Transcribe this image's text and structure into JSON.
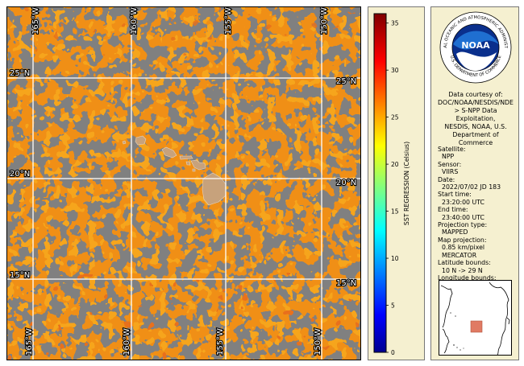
{
  "map": {
    "lat_labels": [
      "25°N",
      "20°N",
      "15°N"
    ],
    "lon_labels": [
      "165°W",
      "160°W",
      "155°W",
      "150°W"
    ],
    "colors": {
      "background": "#808080",
      "land": "#c7a27c",
      "grid": "#ffffff"
    }
  },
  "colorbar": {
    "label": "SST REGRESSION (Celsius)",
    "min": 0,
    "max": 36,
    "ticks": [
      "0",
      "5",
      "10",
      "15",
      "20",
      "25",
      "30",
      "35"
    ]
  },
  "info": {
    "logo": {
      "text": "NOAA",
      "ring_top": "NATIONAL OCEANIC AND ATMOSPHERIC ADMINISTRATION",
      "ring_bottom": "U.S. DEPARTMENT OF COMMERCE"
    },
    "credit": [
      "Data courtesy of:",
      "DOC/NOAA/NESDIS/NDE",
      "> S-NPP Data",
      "Exploitation,",
      "NESDIS, NOAA, U.S.",
      "Department of",
      "Commerce"
    ],
    "fields": [
      {
        "key": "Satellite:",
        "value": "NPP"
      },
      {
        "key": "Sensor:",
        "value": "VIIRS"
      },
      {
        "key": "Date:",
        "value": "2022/07/02 JD 183"
      },
      {
        "key": "Start time:",
        "value": "23:20:00 UTC"
      },
      {
        "key": "End time:",
        "value": "23:40:00 UTC"
      },
      {
        "key": "Projection type:",
        "value": "MAPPED"
      },
      {
        "key": "Map projection:",
        "value": "0.85 km/pixel"
      },
      {
        "key": "",
        "value": "MERCATOR"
      },
      {
        "key": "Latitude bounds:",
        "value": "10 N -> 29 N"
      },
      {
        "key": "Longitude bounds:",
        "value": "167 W -> 147 W"
      }
    ]
  }
}
